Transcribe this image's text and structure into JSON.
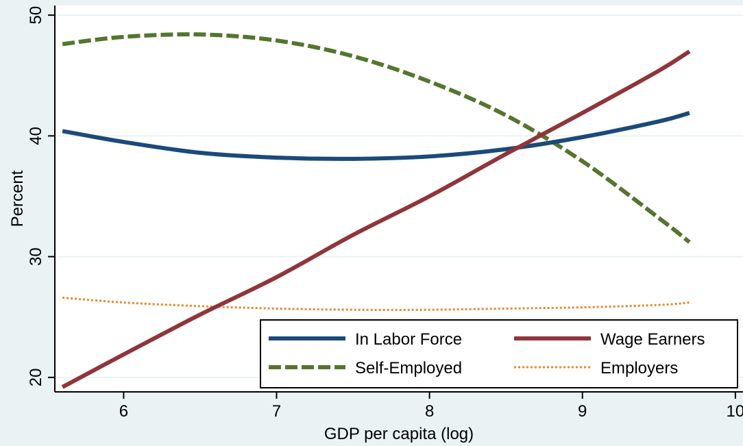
{
  "chart_data": {
    "type": "line",
    "title": "",
    "xlabel": "GDP per capita (log)",
    "ylabel": "Percent",
    "xlim": [
      5.55,
      10.05
    ],
    "ylim": [
      18.8,
      50.8
    ],
    "x_ticks": [
      6,
      7,
      8,
      9,
      10
    ],
    "y_ticks": [
      20,
      30,
      40,
      50
    ],
    "grid": "horizontal",
    "legend_position": "bottom-right",
    "background_color": "#eaf2f3",
    "plot_background_color": "#ffffff",
    "series": [
      {
        "name": "In Labor Force",
        "color": "#1b4a79",
        "style": "solid",
        "x": [
          5.6,
          6.0,
          6.5,
          7.0,
          7.5,
          8.0,
          8.5,
          9.0,
          9.5,
          9.7
        ],
        "y": [
          40.4,
          39.5,
          38.6,
          38.2,
          38.1,
          38.3,
          38.9,
          39.9,
          41.2,
          41.9
        ]
      },
      {
        "name": "Wage Earners",
        "color": "#90353b",
        "style": "solid",
        "x": [
          5.6,
          6.0,
          6.5,
          7.0,
          7.5,
          8.0,
          8.5,
          9.0,
          9.5,
          9.7
        ],
        "y": [
          19.2,
          21.9,
          25.2,
          28.3,
          31.8,
          35.0,
          38.5,
          41.9,
          45.4,
          47.0
        ]
      },
      {
        "name": "Self-Employed",
        "color": "#55752f",
        "style": "dashed",
        "x": [
          5.6,
          6.0,
          6.5,
          7.0,
          7.5,
          8.0,
          8.5,
          9.0,
          9.5,
          9.7
        ],
        "y": [
          47.6,
          48.2,
          48.4,
          47.9,
          46.6,
          44.5,
          41.7,
          37.9,
          33.2,
          31.2
        ]
      },
      {
        "name": "Employers",
        "color": "#e8872b",
        "style": "dotted",
        "x": [
          5.6,
          6.0,
          6.5,
          7.0,
          7.5,
          8.0,
          8.5,
          9.0,
          9.5,
          9.7
        ],
        "y": [
          26.6,
          26.2,
          25.9,
          25.7,
          25.6,
          25.6,
          25.7,
          25.8,
          26.0,
          26.2
        ]
      }
    ]
  }
}
